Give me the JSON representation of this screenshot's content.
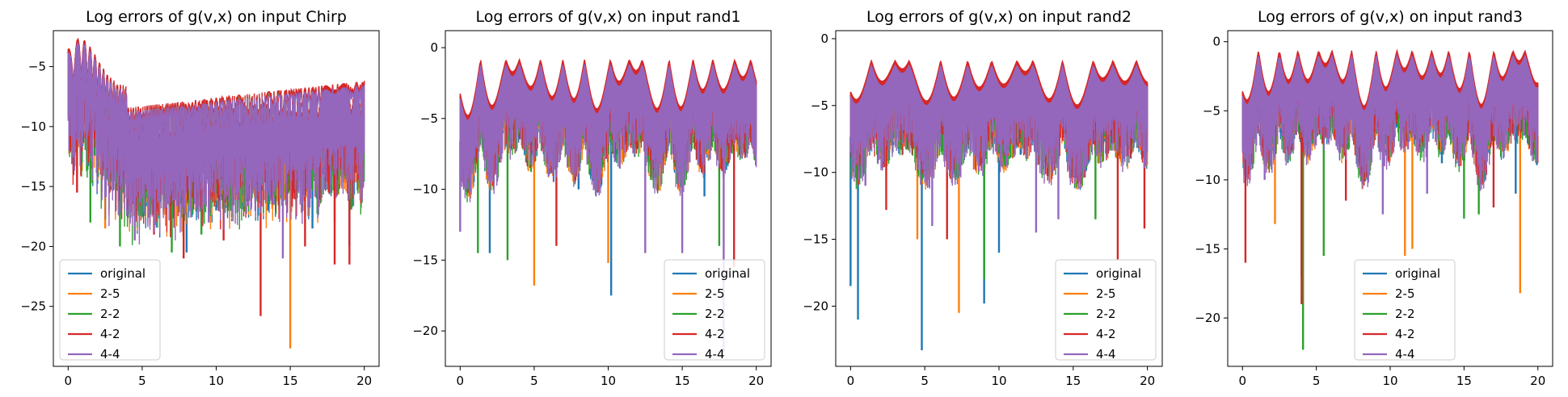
{
  "colors": {
    "original": "#1f77b4",
    "2-5": "#ff7f0e",
    "2-2": "#2ca02c",
    "4-2": "#d62728",
    "4-4": "#9467bd"
  },
  "chart_data": [
    {
      "type": "line",
      "title": "Log errors of g(v,x) on input Chirp",
      "xlabel": "",
      "ylabel": "",
      "xlim": [
        -1,
        21
      ],
      "ylim": [
        -30,
        -2
      ],
      "xticks": [
        0,
        5,
        10,
        15,
        20
      ],
      "xtick_labels": [
        "0",
        "5",
        "10",
        "15",
        "20"
      ],
      "yticks": [
        -25,
        -20,
        -15,
        -10,
        -5
      ],
      "ytick_labels": [
        "−25",
        "−20",
        "−15",
        "−10",
        "−5"
      ],
      "grid": false,
      "legend_position": "lower left",
      "series": [
        {
          "name": "original",
          "color": "#1f77b4",
          "envelope_top": [
            [
              0,
              -7
            ],
            [
              0.8,
              -3.2
            ],
            [
              2,
              -4.5
            ],
            [
              4,
              -6.5
            ],
            [
              6,
              -8.5
            ],
            [
              8,
              -8
            ],
            [
              10,
              -7.5
            ],
            [
              14,
              -7
            ],
            [
              20,
              -6.5
            ]
          ],
          "dips": [
            [
              3.5,
              -17.5
            ],
            [
              5,
              -17.5
            ],
            [
              8,
              -20.5
            ],
            [
              10,
              -17
            ],
            [
              13.5,
              -17
            ],
            [
              16.5,
              -18.5
            ],
            [
              19,
              -20
            ]
          ]
        },
        {
          "name": "2-5",
          "color": "#ff7f0e",
          "envelope_top": [
            [
              0,
              -7
            ],
            [
              0.8,
              -3.2
            ],
            [
              2,
              -4.5
            ],
            [
              4,
              -6.5
            ],
            [
              6,
              -8.5
            ],
            [
              8,
              -8
            ],
            [
              10,
              -7.5
            ],
            [
              14,
              -7
            ],
            [
              20,
              -6.5
            ]
          ],
          "dips": [
            [
              2.5,
              -18.5
            ],
            [
              4.5,
              -19
            ],
            [
              15,
              -28.5
            ],
            [
              18,
              -18
            ]
          ]
        },
        {
          "name": "2-2",
          "color": "#2ca02c",
          "envelope_top": [
            [
              0,
              -7
            ],
            [
              0.8,
              -3.2
            ],
            [
              2,
              -4.5
            ],
            [
              4,
              -6.5
            ],
            [
              6,
              -8.5
            ],
            [
              8,
              -8
            ],
            [
              10,
              -7.5
            ],
            [
              14,
              -7
            ],
            [
              20,
              -6.5
            ]
          ],
          "dips": [
            [
              1.5,
              -18
            ],
            [
              3.5,
              -20
            ],
            [
              5,
              -16.5
            ],
            [
              7,
              -20.5
            ],
            [
              9,
              -19
            ],
            [
              11,
              -17
            ],
            [
              14,
              -15
            ]
          ]
        },
        {
          "name": "4-2",
          "color": "#d62728",
          "envelope_top": [
            [
              0,
              -7
            ],
            [
              0.8,
              -3.2
            ],
            [
              2,
              -4.5
            ],
            [
              4,
              -6.5
            ],
            [
              6,
              -8.5
            ],
            [
              8,
              -8
            ],
            [
              10,
              -7.5
            ],
            [
              14,
              -7
            ],
            [
              20,
              -6.5
            ]
          ],
          "dips": [
            [
              0.6,
              -15.5
            ],
            [
              2.8,
              -15.5
            ],
            [
              5.8,
              -19
            ],
            [
              7.8,
              -21
            ],
            [
              10.5,
              -19.5
            ],
            [
              13,
              -25.8
            ],
            [
              16,
              -20
            ],
            [
              18,
              -21.5
            ],
            [
              19,
              -21.5
            ]
          ]
        },
        {
          "name": "4-4",
          "color": "#9467bd",
          "envelope_top": [
            [
              0,
              -7
            ],
            [
              0.8,
              -3.2
            ],
            [
              2,
              -4.5
            ],
            [
              4,
              -6.5
            ],
            [
              6,
              -8.5
            ],
            [
              8,
              -8
            ],
            [
              10,
              -7.5
            ],
            [
              14,
              -7
            ],
            [
              20,
              -6.5
            ]
          ],
          "dips": [
            [
              4.5,
              -19.5
            ],
            [
              9.5,
              -18
            ],
            [
              14.5,
              -21
            ]
          ]
        }
      ]
    },
    {
      "type": "line",
      "title": "Log errors of g(v,x) on input rand1",
      "xlabel": "",
      "ylabel": "",
      "xlim": [
        -1,
        21
      ],
      "ylim": [
        -22.5,
        1.2
      ],
      "xticks": [
        0,
        5,
        10,
        15,
        20
      ],
      "xtick_labels": [
        "0",
        "5",
        "10",
        "15",
        "20"
      ],
      "yticks": [
        -20,
        -15,
        -10,
        -5,
        0
      ],
      "ytick_labels": [
        "−20",
        "−15",
        "−10",
        "−5",
        "0"
      ],
      "grid": false,
      "legend_position": "lower right",
      "series": [
        {
          "name": "original",
          "color": "#1f77b4",
          "dips": [
            [
              2,
              -14.5
            ],
            [
              8,
              -10
            ],
            [
              10.2,
              -17.5
            ],
            [
              16.5,
              -10.5
            ]
          ]
        },
        {
          "name": "2-5",
          "color": "#ff7f0e",
          "dips": [
            [
              5,
              -16.8
            ],
            [
              10,
              -15.2
            ]
          ]
        },
        {
          "name": "2-2",
          "color": "#2ca02c",
          "dips": [
            [
              1.2,
              -14.5
            ],
            [
              3.2,
              -15
            ],
            [
              17.5,
              -14
            ]
          ]
        },
        {
          "name": "4-2",
          "color": "#d62728",
          "dips": [
            [
              6.5,
              -14
            ],
            [
              18.5,
              -15.5
            ]
          ]
        },
        {
          "name": "4-4",
          "color": "#9467bd",
          "dips": [
            [
              0,
              -13
            ],
            [
              12.5,
              -14.5
            ],
            [
              15,
              -14.5
            ],
            [
              17.8,
              -21.5
            ]
          ]
        }
      ]
    },
    {
      "type": "line",
      "title": "Log errors of g(v,x) on input rand2",
      "xlabel": "",
      "ylabel": "",
      "xlim": [
        -1,
        21
      ],
      "ylim": [
        -24.5,
        0.6
      ],
      "xticks": [
        0,
        5,
        10,
        15,
        20
      ],
      "xtick_labels": [
        "0",
        "5",
        "10",
        "15",
        "20"
      ],
      "yticks": [
        -20,
        -15,
        -10,
        -5,
        0
      ],
      "ytick_labels": [
        "−20",
        "−15",
        "−10",
        "−5",
        "0"
      ],
      "grid": false,
      "legend_position": "lower right",
      "series": [
        {
          "name": "original",
          "color": "#1f77b4",
          "dips": [
            [
              0,
              -18.5
            ],
            [
              0.5,
              -21
            ],
            [
              4.8,
              -23.3
            ],
            [
              9,
              -19.8
            ],
            [
              10,
              -16
            ]
          ]
        },
        {
          "name": "2-5",
          "color": "#ff7f0e",
          "dips": [
            [
              4.5,
              -15
            ],
            [
              7.3,
              -20.5
            ]
          ]
        },
        {
          "name": "2-2",
          "color": "#2ca02c",
          "dips": [
            [
              9,
              -18
            ],
            [
              16.5,
              -13.5
            ]
          ]
        },
        {
          "name": "4-2",
          "color": "#d62728",
          "dips": [
            [
              2.4,
              -12.8
            ],
            [
              6.5,
              -15
            ],
            [
              18,
              -16.5
            ],
            [
              19.8,
              -14.2
            ]
          ]
        },
        {
          "name": "4-4",
          "color": "#9467bd",
          "dips": [
            [
              1,
              -11
            ],
            [
              5.5,
              -14
            ],
            [
              12.5,
              -14.5
            ],
            [
              14,
              -13.5
            ]
          ]
        }
      ]
    },
    {
      "type": "line",
      "title": "Log errors of g(v,x) on input rand3",
      "xlabel": "",
      "ylabel": "",
      "xlim": [
        -1,
        21
      ],
      "ylim": [
        -23.5,
        0.8
      ],
      "xticks": [
        0,
        5,
        10,
        15,
        20
      ],
      "xtick_labels": [
        "0",
        "5",
        "10",
        "15",
        "20"
      ],
      "yticks": [
        -20,
        -15,
        -10,
        -5,
        0
      ],
      "ytick_labels": [
        "−20",
        "−15",
        "−10",
        "−5",
        "0"
      ],
      "grid": false,
      "legend_position": "lower center",
      "series": [
        {
          "name": "original",
          "color": "#1f77b4",
          "dips": [
            [
              4,
              -17
            ],
            [
              13.5,
              -8.8
            ],
            [
              18.5,
              -11
            ]
          ]
        },
        {
          "name": "2-5",
          "color": "#ff7f0e",
          "dips": [
            [
              2.2,
              -13.2
            ],
            [
              11,
              -15.5
            ],
            [
              11.5,
              -15
            ],
            [
              18.8,
              -18.2
            ]
          ]
        },
        {
          "name": "2-2",
          "color": "#2ca02c",
          "dips": [
            [
              4.1,
              -22.3
            ],
            [
              5.5,
              -15.5
            ],
            [
              15,
              -12.8
            ],
            [
              16,
              -12.5
            ]
          ]
        },
        {
          "name": "4-2",
          "color": "#d62728",
          "dips": [
            [
              0.2,
              -16
            ],
            [
              4,
              -19
            ],
            [
              7,
              -11.5
            ],
            [
              17,
              -12
            ]
          ]
        },
        {
          "name": "4-4",
          "color": "#9467bd",
          "dips": [
            [
              1.5,
              -10
            ],
            [
              9.5,
              -12.5
            ],
            [
              12.5,
              -11
            ]
          ]
        }
      ]
    }
  ]
}
